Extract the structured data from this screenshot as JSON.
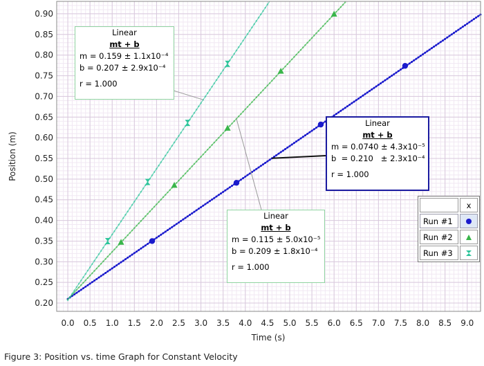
{
  "chart_data": {
    "type": "scatter",
    "xlabel": "Time (s)",
    "ylabel": "Position (m)",
    "xlim": [
      -0.25,
      9.3
    ],
    "ylim": [
      0.18,
      0.93
    ],
    "grid": true,
    "x_ticks": [
      0.0,
      0.5,
      1.0,
      1.5,
      2.0,
      2.5,
      3.0,
      3.5,
      4.0,
      4.5,
      5.0,
      5.5,
      6.0,
      6.5,
      7.0,
      7.5,
      8.0,
      8.5,
      9.0
    ],
    "x_tick_labels": [
      "0.0",
      "0.5",
      "1.0",
      "1.5",
      "2.0",
      "2.5",
      "3.0",
      "3.5",
      "4.0",
      "4.5",
      "5.0",
      "5.5",
      "6.0",
      "6.5",
      "7.0",
      "7.5",
      "8.0",
      "8.5",
      "9.0"
    ],
    "y_ticks": [
      0.2,
      0.25,
      0.3,
      0.35,
      0.4,
      0.45,
      0.5,
      0.55,
      0.6,
      0.65,
      0.7,
      0.75,
      0.8,
      0.85,
      0.9
    ],
    "y_tick_labels": [
      "0.20",
      "0.25",
      "0.30",
      "0.35",
      "0.40",
      "0.45",
      "0.50",
      "0.55",
      "0.60",
      "0.65",
      "0.70",
      "0.75",
      "0.80",
      "0.85",
      "0.90"
    ],
    "legend_position": "right",
    "series": [
      {
        "name": "Run #1",
        "symbol": "circle",
        "color": "#1a1acc",
        "slope": 0.074,
        "intercept": 0.21,
        "x_end": 9.3,
        "markers": [
          {
            "x": 1.9,
            "y": 0.35
          },
          {
            "x": 3.8,
            "y": 0.491
          },
          {
            "x": 5.7,
            "y": 0.632
          },
          {
            "x": 7.6,
            "y": 0.774
          }
        ]
      },
      {
        "name": "Run #2",
        "symbol": "triangle",
        "color": "#39b54a",
        "slope": 0.115,
        "intercept": 0.209,
        "x_end": 6.25,
        "markers": [
          {
            "x": 1.2,
            "y": 0.347
          },
          {
            "x": 2.4,
            "y": 0.485
          },
          {
            "x": 3.6,
            "y": 0.623
          },
          {
            "x": 4.8,
            "y": 0.761
          },
          {
            "x": 6.0,
            "y": 0.899
          }
        ]
      },
      {
        "name": "Run #3",
        "symbol": "hourglass",
        "color": "#2cc49a",
        "slope": 0.159,
        "intercept": 0.207,
        "x_end": 4.55,
        "markers": [
          {
            "x": 0.9,
            "y": 0.35
          },
          {
            "x": 1.8,
            "y": 0.493
          },
          {
            "x": 2.7,
            "y": 0.636
          },
          {
            "x": 3.6,
            "y": 0.779
          }
        ]
      }
    ],
    "fits": [
      {
        "title": "Linear",
        "equation": "mt + b",
        "m_line": "m = 0.159 ± 1.1x10⁻⁴",
        "b_line": "b  = 0.207 ± 2.9x10⁻⁴",
        "r_line": "r = 1.000"
      },
      {
        "title": "Linear",
        "equation": "mt + b",
        "m_line": "m = 0.0740 ± 4.3x10⁻⁵",
        "b_line": "b  = 0.210   ± 2.3x10⁻⁴",
        "r_line": "r = 1.000"
      },
      {
        "title": "Linear",
        "equation": "mt + b",
        "m_line": "m = 0.115 ± 5.0x10⁻⁵",
        "b_line": "b  = 0.209 ± 1.8x10⁻⁴",
        "r_line": "r = 1.000"
      }
    ]
  },
  "legend": {
    "header_x": "x",
    "runs": [
      "Run #1",
      "Run #2",
      "Run #3"
    ]
  },
  "caption": "Figure 3: Position vs. time Graph for Constant Velocity",
  "colors": {
    "run1": "#1a1acc",
    "run2": "#39b54a",
    "run3": "#2cc49a",
    "box_green": "#8fd3a0",
    "box_blue": "#1a1aa0"
  }
}
